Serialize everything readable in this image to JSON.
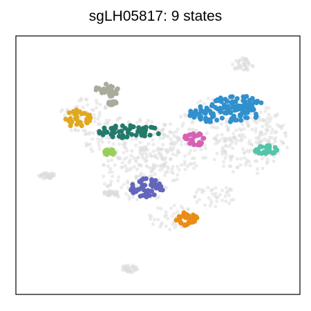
{
  "chart_data": {
    "type": "scatter",
    "title": "sgLH05817: 9 states",
    "xlabel": "",
    "ylabel": "",
    "axes": "frame-only, no ticks",
    "grid": false,
    "legend": "none",
    "background": {
      "color": "#dcdcdc",
      "regions": [
        {
          "name": "left-top-blob",
          "cx": 0.24,
          "cy": 0.69,
          "rx": 0.09,
          "ry": 0.07
        },
        {
          "name": "center-band",
          "cx": 0.42,
          "cy": 0.6,
          "rx": 0.18,
          "ry": 0.09
        },
        {
          "name": "center-lower",
          "cx": 0.43,
          "cy": 0.46,
          "rx": 0.14,
          "ry": 0.1
        },
        {
          "name": "center-mid",
          "cx": 0.56,
          "cy": 0.55,
          "rx": 0.12,
          "ry": 0.08
        },
        {
          "name": "right-top",
          "cx": 0.75,
          "cy": 0.68,
          "rx": 0.18,
          "ry": 0.09
        },
        {
          "name": "right-lower",
          "cx": 0.8,
          "cy": 0.55,
          "rx": 0.12,
          "ry": 0.09
        },
        {
          "name": "right-edge",
          "cx": 0.9,
          "cy": 0.6,
          "rx": 0.06,
          "ry": 0.08
        },
        {
          "name": "bottom-center",
          "cx": 0.55,
          "cy": 0.3,
          "rx": 0.09,
          "ry": 0.05
        },
        {
          "name": "bottom-right-arm",
          "cx": 0.7,
          "cy": 0.38,
          "rx": 0.08,
          "ry": 0.04
        },
        {
          "name": "top-right-small",
          "cx": 0.8,
          "cy": 0.89,
          "rx": 0.04,
          "ry": 0.025
        },
        {
          "name": "left-stray",
          "cx": 0.11,
          "cy": 0.46,
          "rx": 0.03,
          "ry": 0.012
        },
        {
          "name": "left-mid-stray",
          "cx": 0.33,
          "cy": 0.39,
          "rx": 0.03,
          "ry": 0.012
        },
        {
          "name": "bottom-small",
          "cx": 0.4,
          "cy": 0.1,
          "rx": 0.03,
          "ry": 0.015
        }
      ]
    },
    "series": [
      {
        "color": "#a8ac9c",
        "cx": 0.32,
        "cy": 0.79,
        "rx": 0.04,
        "ry": 0.025
      },
      {
        "color": "#a8ac9c",
        "cx": 0.34,
        "cy": 0.74,
        "rx": 0.015,
        "ry": 0.007
      },
      {
        "color": "#e0a820",
        "cx": 0.22,
        "cy": 0.68,
        "rx": 0.045,
        "ry": 0.035
      },
      {
        "color": "#237a6b",
        "cx": 0.4,
        "cy": 0.63,
        "rx": 0.11,
        "ry": 0.025
      },
      {
        "color": "#98cf5a",
        "cx": 0.33,
        "cy": 0.55,
        "rx": 0.02,
        "ry": 0.011
      },
      {
        "color": "#3190cd",
        "cx": 0.73,
        "cy": 0.7,
        "rx": 0.13,
        "ry": 0.035
      },
      {
        "color": "#3190cd",
        "cx": 0.78,
        "cy": 0.74,
        "rx": 0.09,
        "ry": 0.03
      },
      {
        "color": "#d662b4",
        "cx": 0.63,
        "cy": 0.6,
        "rx": 0.04,
        "ry": 0.026
      },
      {
        "color": "#55c4a8",
        "cx": 0.88,
        "cy": 0.56,
        "rx": 0.04,
        "ry": 0.018
      },
      {
        "color": "#6366ba",
        "cx": 0.46,
        "cy": 0.41,
        "rx": 0.06,
        "ry": 0.04
      },
      {
        "color": "#ec8c12",
        "cx": 0.6,
        "cy": 0.29,
        "rx": 0.04,
        "ry": 0.027
      }
    ],
    "xlim": [
      0,
      1
    ],
    "ylim": [
      0,
      1
    ]
  }
}
